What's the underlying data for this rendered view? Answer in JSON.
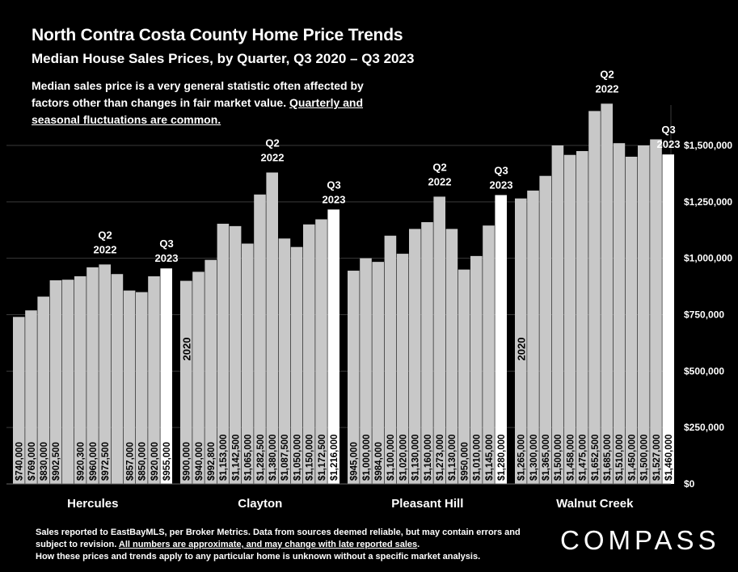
{
  "header": {
    "title": "North Contra Costa County Home Price Trends",
    "subtitle": "Median House Sales Prices, by Quarter, Q3 2020 – Q3 2023",
    "note_plain": "Median sales price is a very general statistic often affected by factors other than changes in fair market value. ",
    "note_underlined": "Quarterly and seasonal fluctuations are common."
  },
  "footer": {
    "line1": "Sales reported to EastBayMLS, per Broker Metrics. Data from sources deemed reliable, but may contain errors and subject to revision. ",
    "line1_underlined": "All numbers are approximate, and may change with late reported sales",
    "line1_end": ".",
    "line2": "How these prices and trends apply to any particular home is unknown without a specific market analysis."
  },
  "logo": "COMPASS",
  "colors": {
    "background": "#000000",
    "bar": "#c8c8c8",
    "bar_highlight": "#ffffff",
    "grid": "#3a3a3a"
  },
  "chart_data": {
    "type": "bar",
    "ylim": [
      0,
      1750000
    ],
    "yticks": [
      0,
      250000,
      500000,
      750000,
      1000000,
      1250000,
      1500000
    ],
    "ytick_labels": [
      "$0",
      "$250,000",
      "$500,000",
      "$750,000",
      "$1,000,000",
      "$1,250,000",
      "$1,500,000"
    ],
    "grid": true,
    "groups": [
      {
        "name": "Hercules",
        "values": [
          740000,
          769000,
          830000,
          902500,
          905000,
          920300,
          960000,
          972500,
          930000,
          857000,
          850000,
          920000,
          955000
        ],
        "labels": [
          "$740,000",
          "$769,000",
          "$830,000",
          "$902,500",
          "",
          "$920,300",
          "$960,000",
          "$972,500",
          "",
          "$857,000",
          "$850,000",
          "$920,000",
          "$955,000"
        ],
        "year_label": "",
        "peak_label": [
          "Q2",
          "2022"
        ],
        "last_label": [
          "Q3",
          "2023"
        ]
      },
      {
        "name": "Clayton",
        "values": [
          900000,
          940000,
          992800,
          1153000,
          1142500,
          1065000,
          1282500,
          1380000,
          1087500,
          1050000,
          1150000,
          1172500,
          1216000
        ],
        "labels": [
          "$900,000",
          "$940,000",
          "$992,800",
          "$1,153,000",
          "$1,142,500",
          "$1,065,000",
          "$1,282,500",
          "$1,380,000",
          "$1,087,500",
          "$1,050,000",
          "$1,150,000",
          "$1,172,500",
          "$1,216,000"
        ],
        "year_label": "2020",
        "peak_label": [
          "Q2",
          "2022"
        ],
        "last_label": [
          "Q3",
          "2023"
        ]
      },
      {
        "name": "Pleasant Hill",
        "values": [
          945000,
          1000000,
          984000,
          1100000,
          1020000,
          1130000,
          1160000,
          1273000,
          1130000,
          950000,
          1010000,
          1145000,
          1280000
        ],
        "labels": [
          "$945,000",
          "$1,000,000",
          "$984,000",
          "$1,100,000",
          "$1,020,000",
          "$1,130,000",
          "$1,160,000",
          "$1,273,000",
          "$1,130,000",
          "$950,000",
          "$1,010,000",
          "$1,145,000",
          "$1,280,000"
        ],
        "year_label": "",
        "peak_label": [
          "Q2",
          "2022"
        ],
        "last_label": [
          "Q3",
          "2023"
        ]
      },
      {
        "name": "Walnut Creek",
        "values": [
          1265000,
          1300000,
          1365000,
          1500000,
          1458000,
          1475000,
          1652500,
          1685000,
          1510000,
          1450000,
          1500000,
          1527000,
          1460000
        ],
        "labels": [
          "$1,265,000",
          "$1,300,000",
          "$1,365,000",
          "$1,500,000",
          "$1,458,000",
          "$1,475,000",
          "$1,652,500",
          "$1,685,000",
          "$1,510,000",
          "$1,450,000",
          "$1,500,000",
          "$1,527,000",
          "$1,460,000"
        ],
        "year_label": "2020",
        "peak_label": [
          "Q2",
          "2022"
        ],
        "last_label": [
          "Q3",
          "2023"
        ]
      }
    ]
  }
}
